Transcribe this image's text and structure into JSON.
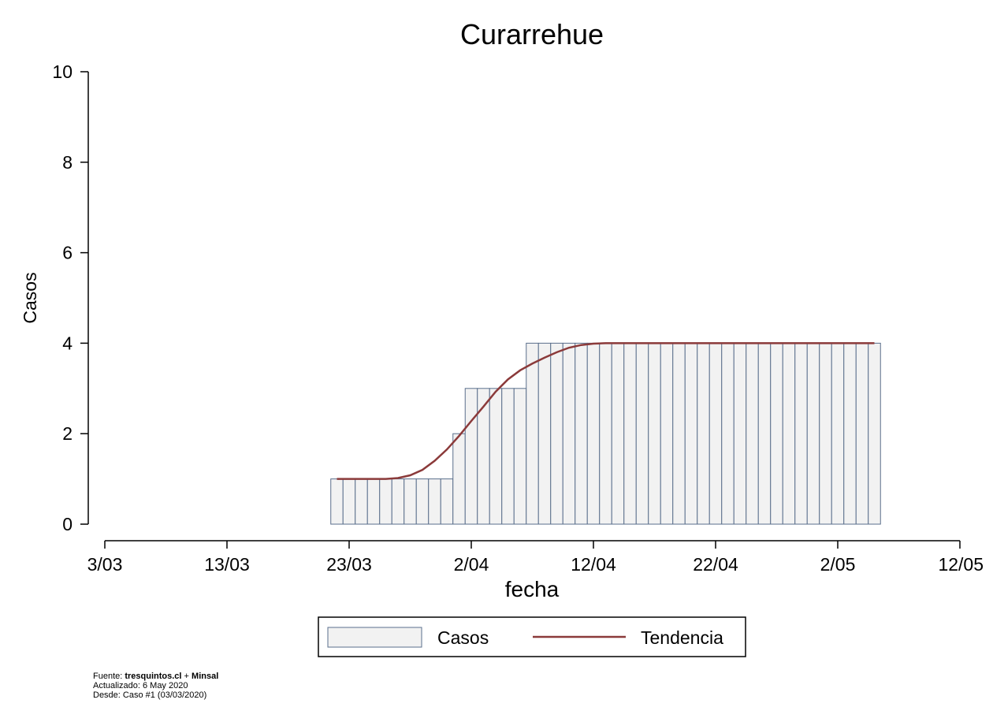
{
  "chart_data": {
    "type": "bar",
    "title": "Curarrehue",
    "xlabel": "fecha",
    "ylabel": "Casos",
    "ylim": [
      0,
      10
    ],
    "yticks": [
      "0",
      "2",
      "4",
      "6",
      "8",
      "10"
    ],
    "xlim": [
      "2020-03-03",
      "2020-05-12"
    ],
    "xticks": [
      "3/03",
      "13/03",
      "23/03",
      "2/04",
      "12/04",
      "22/04",
      "2/05",
      "12/05"
    ],
    "x": [
      "2020-03-22",
      "2020-03-23",
      "2020-03-24",
      "2020-03-25",
      "2020-03-26",
      "2020-03-27",
      "2020-03-28",
      "2020-03-29",
      "2020-03-30",
      "2020-03-31",
      "2020-04-01",
      "2020-04-02",
      "2020-04-03",
      "2020-04-04",
      "2020-04-05",
      "2020-04-06",
      "2020-04-07",
      "2020-04-08",
      "2020-04-09",
      "2020-04-10",
      "2020-04-11",
      "2020-04-12",
      "2020-04-13",
      "2020-04-14",
      "2020-04-15",
      "2020-04-16",
      "2020-04-17",
      "2020-04-18",
      "2020-04-19",
      "2020-04-20",
      "2020-04-21",
      "2020-04-22",
      "2020-04-23",
      "2020-04-24",
      "2020-04-25",
      "2020-04-26",
      "2020-04-27",
      "2020-04-28",
      "2020-04-29",
      "2020-04-30",
      "2020-05-01",
      "2020-05-02",
      "2020-05-03",
      "2020-05-04",
      "2020-05-05"
    ],
    "series": [
      {
        "name": "Casos",
        "values": [
          1,
          1,
          1,
          1,
          1,
          1,
          1,
          1,
          1,
          1,
          2,
          3,
          3,
          3,
          3,
          3,
          4,
          4,
          4,
          4,
          4,
          4,
          4,
          4,
          4,
          4,
          4,
          4,
          4,
          4,
          4,
          4,
          4,
          4,
          4,
          4,
          4,
          4,
          4,
          4,
          4,
          4,
          4,
          4,
          4
        ],
        "color": "#f2f2f2",
        "edge_color": "#5a6f8c"
      },
      {
        "name": "Tendencia",
        "values": [
          1,
          1,
          1,
          1,
          1,
          1.02,
          1.08,
          1.2,
          1.4,
          1.65,
          1.95,
          2.28,
          2.6,
          2.93,
          3.2,
          3.4,
          3.55,
          3.68,
          3.8,
          3.9,
          3.96,
          3.99,
          4,
          4,
          4,
          4,
          4,
          4,
          4,
          4,
          4,
          4,
          4,
          4,
          4,
          4,
          4,
          4,
          4,
          4,
          4,
          4,
          4,
          4,
          4
        ],
        "color": "#8b3a3a"
      }
    ],
    "legend": {
      "position": "bottom-center",
      "items": [
        "Casos",
        "Tendencia"
      ]
    },
    "grid": false
  },
  "footer": {
    "fuente_prefix": "Fuente: ",
    "fuente_bold": "tresquintos.cl",
    "fuente_plus": " + ",
    "fuente_bold2": "Minsal",
    "actualizado": "Actualizado: 6 May 2020",
    "desde": "Desde: Caso #1   (03/03/2020)"
  }
}
